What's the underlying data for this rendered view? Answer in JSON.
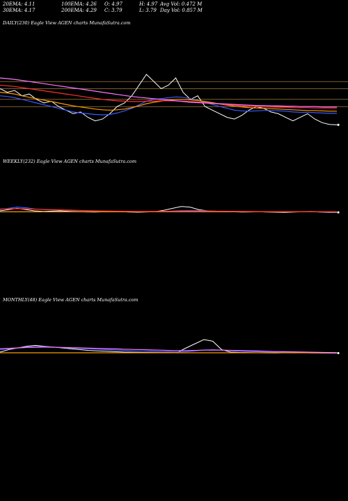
{
  "header": {
    "ema20": "20EMA: 4.11",
    "ema100": "100EMA: 4.26",
    "open": "O: 4.97",
    "high": "H: 4.97",
    "avgvol": "Avg Vol: 0.472  M",
    "ema30": "30EMA: 4.17",
    "ema200": "200EMA: 4.29",
    "close": "C: 3.79",
    "low": "L: 3.79",
    "dayvol": "Day Vol: 0.857 M"
  },
  "colors": {
    "price": "#ffffff",
    "ema_blue": "#3a5bff",
    "ema_red": "#ff3030",
    "ema_orange": "#ff9900",
    "ema_pink": "#ff77ff",
    "grid": "#c89a4a"
  },
  "chart_data": [
    {
      "type": "line",
      "title": "DAILY(230) Eagle  View  AGEN  charts MunafaSutra.com",
      "x_count": 230,
      "series": [
        {
          "color": "#ffffff",
          "values": [
            4.8,
            4.7,
            4.75,
            4.6,
            4.65,
            4.5,
            4.4,
            4.45,
            4.3,
            4.2,
            4.1,
            4.15,
            4.0,
            3.9,
            3.95,
            4.1,
            4.3,
            4.4,
            4.6,
            4.9,
            5.2,
            5.0,
            4.8,
            4.9,
            5.1,
            4.7,
            4.5,
            4.6,
            4.3,
            4.2,
            4.1,
            4.0,
            3.95,
            4.05,
            4.2,
            4.3,
            4.25,
            4.15,
            4.1,
            4.0,
            3.9,
            4.0,
            4.1,
            3.95,
            3.85,
            3.8,
            3.79
          ]
        },
        {
          "color": "#3a5bff",
          "values": [
            4.6,
            4.58,
            4.55,
            4.5,
            4.45,
            4.4,
            4.35,
            4.3,
            4.25,
            4.2,
            4.15,
            4.12,
            4.1,
            4.08,
            4.07,
            4.08,
            4.12,
            4.18,
            4.25,
            4.35,
            4.45,
            4.5,
            4.52,
            4.55,
            4.57,
            4.56,
            4.52,
            4.48,
            4.42,
            4.36,
            4.3,
            4.25,
            4.2,
            4.18,
            4.17,
            4.18,
            4.19,
            4.19,
            4.18,
            4.17,
            4.15,
            4.14,
            4.14,
            4.13,
            4.12,
            4.11,
            4.11
          ]
        },
        {
          "color": "#ff9900",
          "values": [
            4.7,
            4.68,
            4.65,
            4.6,
            4.56,
            4.52,
            4.48,
            4.44,
            4.4,
            4.36,
            4.32,
            4.29,
            4.26,
            4.23,
            4.21,
            4.2,
            4.21,
            4.23,
            4.27,
            4.32,
            4.38,
            4.42,
            4.45,
            4.48,
            4.5,
            4.5,
            4.49,
            4.47,
            4.44,
            4.41,
            4.37,
            4.34,
            4.31,
            4.29,
            4.27,
            4.26,
            4.25,
            4.24,
            4.23,
            4.22,
            4.21,
            4.2,
            4.19,
            4.19,
            4.18,
            4.17,
            4.17
          ]
        },
        {
          "color": "#ff3030",
          "values": [
            4.9,
            4.88,
            4.86,
            4.83,
            4.8,
            4.77,
            4.74,
            4.71,
            4.68,
            4.65,
            4.62,
            4.59,
            4.56,
            4.53,
            4.5,
            4.48,
            4.46,
            4.45,
            4.44,
            4.44,
            4.45,
            4.45,
            4.46,
            4.46,
            4.46,
            4.45,
            4.44,
            4.43,
            4.41,
            4.39,
            4.37,
            4.35,
            4.34,
            4.32,
            4.31,
            4.3,
            4.29,
            4.29,
            4.28,
            4.28,
            4.27,
            4.27,
            4.27,
            4.26,
            4.26,
            4.26,
            4.26
          ]
        },
        {
          "color": "#ff77ff",
          "values": [
            5.1,
            5.08,
            5.06,
            5.03,
            5.0,
            4.97,
            4.94,
            4.91,
            4.88,
            4.85,
            4.82,
            4.79,
            4.76,
            4.73,
            4.7,
            4.67,
            4.64,
            4.61,
            4.58,
            4.56,
            4.54,
            4.52,
            4.5,
            4.48,
            4.46,
            4.44,
            4.42,
            4.41,
            4.4,
            4.39,
            4.38,
            4.37,
            4.36,
            4.35,
            4.34,
            4.33,
            4.33,
            4.32,
            4.32,
            4.31,
            4.31,
            4.3,
            4.3,
            4.3,
            4.29,
            4.29,
            4.29
          ]
        }
      ],
      "ylim": [
        3.0,
        6.5
      ]
    },
    {
      "type": "line",
      "title": "WEEKLY(232) Eagle  View  AGEN  charts MunafaSutra.com",
      "x_count": 232,
      "series": [
        {
          "color": "#ffffff",
          "values": [
            5,
            6,
            7,
            6,
            5,
            4.5,
            4.8,
            5,
            4.6,
            4.3,
            4.1,
            4.0,
            4.2,
            4.5,
            4.3,
            4.0,
            3.9,
            4.1,
            4.4,
            5.5,
            7,
            8.5,
            8,
            6,
            5,
            4.6,
            4.4,
            4.2,
            4.0,
            4.1,
            4.3,
            4.0,
            3.9,
            3.8,
            4.0,
            4.2,
            4.5,
            4.0,
            3.8,
            3.79
          ]
        },
        {
          "color": "#3a5bff",
          "values": [
            6,
            7,
            8,
            7.5,
            6.5,
            6,
            5.8,
            5.6,
            5.4,
            5.2,
            5.0,
            4.8,
            4.7,
            4.6,
            4.55,
            4.5,
            4.45,
            4.4,
            4.45,
            4.6,
            4.9,
            5.2,
            5.3,
            5.2,
            5.0,
            4.8,
            4.7,
            4.6,
            4.5,
            4.45,
            4.4,
            4.35,
            4.3,
            4.25,
            4.2,
            4.2,
            4.2,
            4.15,
            4.12,
            4.11
          ]
        },
        {
          "color": "#ff9900",
          "values": [
            4.2,
            4.2,
            4.2,
            4.2,
            4.2,
            4.2,
            4.2,
            4.2,
            4.2,
            4.2,
            4.2,
            4.2,
            4.2,
            4.2,
            4.2,
            4.2,
            4.2,
            4.2,
            4.2,
            4.2,
            4.2,
            4.2,
            4.2,
            4.2,
            4.2,
            4.2,
            4.2,
            4.2,
            4.2,
            4.2,
            4.2,
            4.2,
            4.2,
            4.2,
            4.2,
            4.2,
            4.2,
            4.2,
            4.2,
            4.17
          ]
        },
        {
          "color": "#ff3030",
          "values": [
            6.5,
            6.6,
            6.7,
            6.6,
            6.4,
            6.2,
            6.0,
            5.8,
            5.6,
            5.4,
            5.2,
            5.0,
            4.9,
            4.8,
            4.7,
            4.6,
            4.5,
            4.5,
            4.5,
            4.55,
            4.6,
            4.7,
            4.75,
            4.75,
            4.7,
            4.65,
            4.6,
            4.55,
            4.5,
            4.45,
            4.4,
            4.38,
            4.35,
            4.33,
            4.31,
            4.3,
            4.29,
            4.28,
            4.27,
            4.26
          ]
        }
      ],
      "ylim": [
        -60,
        40
      ]
    },
    {
      "type": "line",
      "title": "MONTHLY(48) Eagle  View  AGEN  charts MunafaSutra.com",
      "x_count": 48,
      "series": [
        {
          "color": "#ffffff",
          "values": [
            5,
            8,
            10,
            12,
            13,
            12,
            11,
            10,
            9,
            8,
            7,
            6.5,
            6,
            5.5,
            5,
            4.8,
            4.6,
            4.5,
            4.4,
            4.3,
            4.5,
            10,
            15,
            20,
            18,
            8,
            5,
            4.6,
            4.4,
            4.2,
            4.1,
            4.0,
            4.2,
            4.5,
            4.3,
            4.1,
            3.9,
            3.8,
            3.79
          ]
        },
        {
          "color": "#3a5bff",
          "values": [
            8,
            9,
            10,
            11,
            11.5,
            11.5,
            11,
            10.5,
            10,
            9.5,
            9,
            8.5,
            8,
            7.5,
            7,
            6.5,
            6,
            5.8,
            5.5,
            5.3,
            5.2,
            5.5,
            6.5,
            7.5,
            7.8,
            7.4,
            6.8,
            6.2,
            5.8,
            5.4,
            5.1,
            4.9,
            4.7,
            4.6,
            4.5,
            4.4,
            4.3,
            4.2,
            4.11
          ]
        },
        {
          "color": "#ff9900",
          "values": [
            4.2,
            4.2,
            4.2,
            4.2,
            4.2,
            4.2,
            4.2,
            4.2,
            4.2,
            4.2,
            4.2,
            4.2,
            4.2,
            4.2,
            4.2,
            4.2,
            4.2,
            4.2,
            4.2,
            4.2,
            4.2,
            4.2,
            4.2,
            4.2,
            4.2,
            4.2,
            4.2,
            4.2,
            4.2,
            4.2,
            4.2,
            4.2,
            4.2,
            4.2,
            4.2,
            4.2,
            4.2,
            4.2,
            4.17
          ]
        },
        {
          "color": "#ff77ff",
          "values": [
            9,
            9.5,
            10,
            10.5,
            10.8,
            10.9,
            10.8,
            10.6,
            10.3,
            10,
            9.7,
            9.4,
            9.1,
            8.8,
            8.5,
            8.2,
            7.9,
            7.6,
            7.3,
            7.0,
            6.8,
            6.8,
            7.0,
            7.3,
            7.4,
            7.3,
            7.1,
            6.9,
            6.6,
            6.3,
            6.0,
            5.7,
            5.5,
            5.3,
            5.1,
            4.9,
            4.7,
            4.5,
            4.29
          ]
        }
      ],
      "ylim": [
        -90,
        60
      ]
    }
  ]
}
